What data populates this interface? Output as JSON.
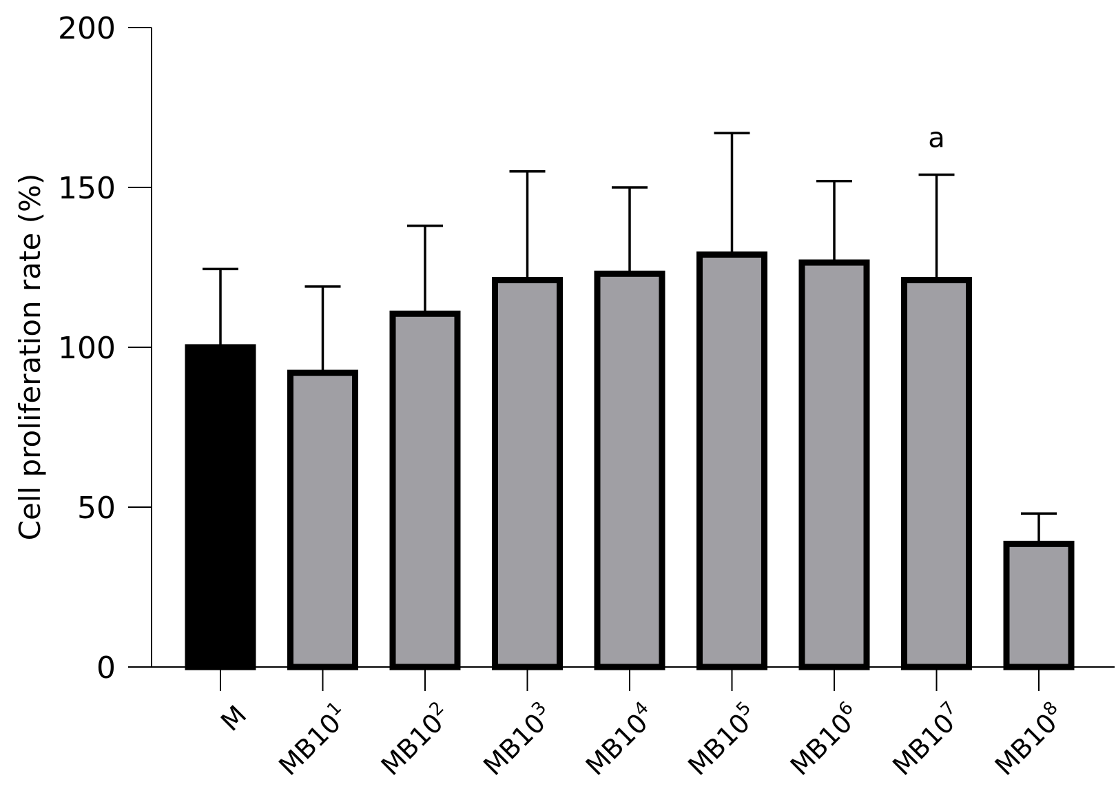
{
  "chart_data": {
    "type": "bar",
    "title": "",
    "xlabel": "",
    "ylabel": "Cell proliferation rate (%)",
    "ylim": [
      0,
      200
    ],
    "yticks": [
      0,
      50,
      100,
      150,
      200
    ],
    "grid": false,
    "categories": [
      {
        "base": "M",
        "sup": ""
      },
      {
        "base": "MB10",
        "sup": "1"
      },
      {
        "base": "MB10",
        "sup": "2"
      },
      {
        "base": "MB10",
        "sup": "3"
      },
      {
        "base": "MB10",
        "sup": "4"
      },
      {
        "base": "MB10",
        "sup": "5"
      },
      {
        "base": "MB10",
        "sup": "6"
      },
      {
        "base": "MB10",
        "sup": "7"
      },
      {
        "base": "MB10",
        "sup": "8"
      }
    ],
    "values": [
      100,
      92,
      110.5,
      121,
      123,
      129,
      126.5,
      121,
      38.5
    ],
    "error_upper": [
      124.5,
      119,
      138,
      155,
      150,
      167,
      152,
      154,
      48
    ],
    "annotations": [
      "",
      "",
      "",
      "",
      "",
      "",
      "",
      "a",
      ""
    ],
    "colors": {
      "control_fill": "#000000",
      "bar_fill": "#a09fa4",
      "bar_stroke": "#000000",
      "axis": "#000000"
    }
  }
}
